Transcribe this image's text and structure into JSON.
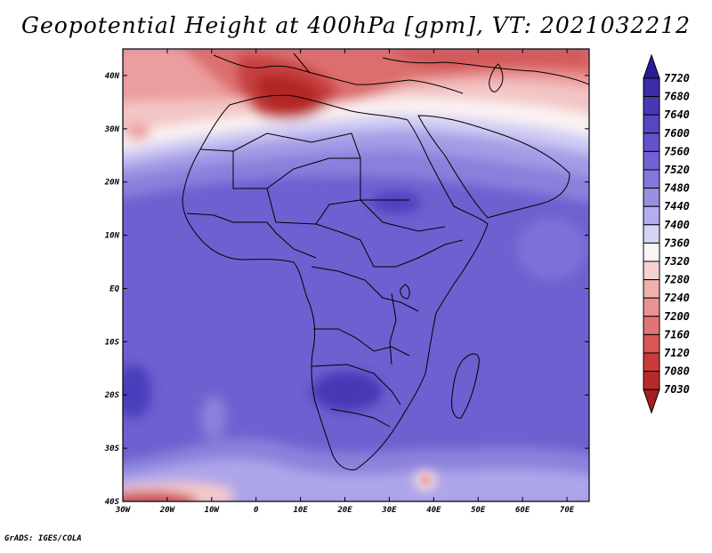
{
  "title": "Geopotential Height at 400hPa [gpm], VT: 2021032212",
  "footer": "GrADS: IGES/COLA",
  "map": {
    "lat_labels": [
      "40N",
      "30N",
      "20N",
      "10N",
      "EQ",
      "10S",
      "20S",
      "30S",
      "40S"
    ],
    "lon_labels": [
      "30W",
      "20W",
      "10W",
      "0",
      "10E",
      "20E",
      "30E",
      "40E",
      "50E",
      "60E",
      "70E"
    ],
    "lon_range": [
      -30,
      75
    ],
    "lat_range": [
      -40,
      45
    ]
  },
  "colorbar": {
    "levels": [
      "7720",
      "7680",
      "7640",
      "7600",
      "7560",
      "7520",
      "7480",
      "7440",
      "7400",
      "7360",
      "7320",
      "7280",
      "7240",
      "7200",
      "7160",
      "7120",
      "7080",
      "7030"
    ],
    "colors": [
      "#2a1c96",
      "#3a2ba8",
      "#4738b6",
      "#5546c2",
      "#6352cc",
      "#7062d4",
      "#8278dc",
      "#9890e4",
      "#b4aeee",
      "#d6d4f6",
      "#fbf4f4",
      "#f6d2d2",
      "#f0b0b0",
      "#ea9292",
      "#e27474",
      "#d85656",
      "#ca3a3a",
      "#b82a2a",
      "#a81e1e"
    ]
  }
}
